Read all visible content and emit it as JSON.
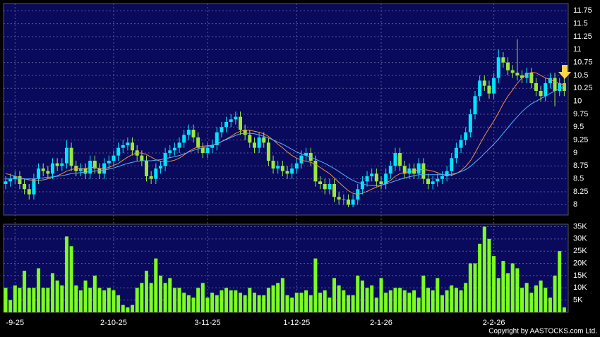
{
  "chart_data": [
    {
      "type": "candlestick",
      "categories": [
        null,
        null,
        "-9-25",
        null,
        null,
        null,
        null,
        null,
        null,
        null,
        null,
        null,
        null,
        null,
        null,
        null,
        null,
        null,
        null,
        null,
        null,
        null,
        null,
        "2-10-25",
        null,
        null,
        null,
        null,
        null,
        null,
        null,
        null,
        null,
        null,
        null,
        null,
        null,
        null,
        null,
        null,
        null,
        null,
        null,
        "3-11-25",
        null,
        null,
        null,
        null,
        null,
        null,
        null,
        null,
        null,
        null,
        null,
        null,
        null,
        null,
        null,
        null,
        null,
        null,
        "1-12-25",
        null,
        null,
        null,
        null,
        null,
        null,
        null,
        null,
        null,
        null,
        null,
        null,
        null,
        null,
        null,
        null,
        null,
        "2-1-26",
        null,
        null,
        null,
        null,
        null,
        null,
        null,
        null,
        null,
        null,
        null,
        null,
        null,
        null,
        null,
        null,
        null,
        null,
        null,
        null,
        null,
        null,
        null,
        "2-2-26",
        null,
        null,
        null,
        null,
        null,
        null,
        null,
        null,
        null,
        null,
        null,
        null,
        null,
        null,
        null
      ],
      "open": [
        8.4,
        8.45,
        8.5,
        8.55,
        8.4,
        8.3,
        8.2,
        8.5,
        8.7,
        8.65,
        8.6,
        8.8,
        8.75,
        8.8,
        9.1,
        8.75,
        8.65,
        8.7,
        8.6,
        8.85,
        8.7,
        8.6,
        8.8,
        8.85,
        8.95,
        9.1,
        9.15,
        9.2,
        9.05,
        8.95,
        8.85,
        8.55,
        8.5,
        8.7,
        8.75,
        9.0,
        9.05,
        9.1,
        9.2,
        9.35,
        9.45,
        9.3,
        9.1,
        9.0,
        9.1,
        9.15,
        9.4,
        9.5,
        9.6,
        9.65,
        9.7,
        9.45,
        9.35,
        9.2,
        9.1,
        9.3,
        9.2,
        8.85,
        8.7,
        8.75,
        8.65,
        8.6,
        8.7,
        8.8,
        8.95,
        9.0,
        8.85,
        8.45,
        8.4,
        8.3,
        8.4,
        8.15,
        8.1,
        8.1,
        8.0,
        8.1,
        8.3,
        8.45,
        8.55,
        8.6,
        8.45,
        8.4,
        8.6,
        8.75,
        9.0,
        8.75,
        8.6,
        8.7,
        8.6,
        8.8,
        8.5,
        8.4,
        8.45,
        8.5,
        8.55,
        8.65,
        8.9,
        9.1,
        9.25,
        9.4,
        9.75,
        10.1,
        10.4,
        10.3,
        10.15,
        10.45,
        10.85,
        10.75,
        10.6,
        10.55,
        10.5,
        10.45,
        10.55,
        10.35,
        10.2,
        10.1,
        10.35,
        10.45,
        10.2,
        10.35
      ],
      "high": [
        8.55,
        8.6,
        8.65,
        8.65,
        8.5,
        8.4,
        8.6,
        8.8,
        8.8,
        8.75,
        8.9,
        8.9,
        8.9,
        9.25,
        9.2,
        8.85,
        8.8,
        8.8,
        8.95,
        8.95,
        8.8,
        8.9,
        8.95,
        9.05,
        9.2,
        9.25,
        9.3,
        9.3,
        9.15,
        9.05,
        8.95,
        8.65,
        8.8,
        8.85,
        9.1,
        9.15,
        9.2,
        9.3,
        9.45,
        9.55,
        9.55,
        9.4,
        9.2,
        9.2,
        9.25,
        9.5,
        9.6,
        9.7,
        9.75,
        9.8,
        9.8,
        9.55,
        9.45,
        9.3,
        9.4,
        9.4,
        9.3,
        8.95,
        8.85,
        8.85,
        8.75,
        8.8,
        8.9,
        9.05,
        9.1,
        9.1,
        8.95,
        8.55,
        8.5,
        8.5,
        8.5,
        8.25,
        8.2,
        8.2,
        8.2,
        8.4,
        8.55,
        8.65,
        8.7,
        8.7,
        8.55,
        8.7,
        8.85,
        9.1,
        9.1,
        8.85,
        8.8,
        8.8,
        8.9,
        8.9,
        8.6,
        8.55,
        8.6,
        8.65,
        8.75,
        9.0,
        9.2,
        9.35,
        9.5,
        9.85,
        10.2,
        10.5,
        10.5,
        10.4,
        10.55,
        11.0,
        10.95,
        10.85,
        10.7,
        11.2,
        10.6,
        10.65,
        10.65,
        10.45,
        10.3,
        10.45,
        10.55,
        10.55,
        10.45,
        10.45
      ],
      "low": [
        8.3,
        8.35,
        8.4,
        8.3,
        8.2,
        8.1,
        8.1,
        8.4,
        8.55,
        8.5,
        8.5,
        8.65,
        8.65,
        8.7,
        8.65,
        8.55,
        8.55,
        8.5,
        8.5,
        8.6,
        8.5,
        8.5,
        8.7,
        8.75,
        8.85,
        9.0,
        9.05,
        8.95,
        8.85,
        8.75,
        8.45,
        8.4,
        8.4,
        8.6,
        8.65,
        8.9,
        8.95,
        9.0,
        9.1,
        9.25,
        9.2,
        9.0,
        8.9,
        8.9,
        9.0,
        9.05,
        9.3,
        9.4,
        9.5,
        9.55,
        9.35,
        9.25,
        9.1,
        9.0,
        9.0,
        9.1,
        8.75,
        8.6,
        8.6,
        8.55,
        8.5,
        8.5,
        8.6,
        8.7,
        8.85,
        8.75,
        8.35,
        8.3,
        8.2,
        8.2,
        8.05,
        8.0,
        8.0,
        7.95,
        7.95,
        8.0,
        8.2,
        8.35,
        8.45,
        8.35,
        8.3,
        8.3,
        8.5,
        8.65,
        8.65,
        8.5,
        8.5,
        8.5,
        8.5,
        8.4,
        8.3,
        8.3,
        8.35,
        8.4,
        8.45,
        8.55,
        8.8,
        9.0,
        9.15,
        9.3,
        9.65,
        10.0,
        10.2,
        10.05,
        10.05,
        10.35,
        10.65,
        10.5,
        10.45,
        10.4,
        10.35,
        10.35,
        10.25,
        10.1,
        10.0,
        10.0,
        10.25,
        9.9,
        10.1,
        10.1
      ],
      "close": [
        8.45,
        8.5,
        8.55,
        8.4,
        8.3,
        8.2,
        8.5,
        8.7,
        8.65,
        8.6,
        8.8,
        8.75,
        8.8,
        9.1,
        8.75,
        8.65,
        8.7,
        8.6,
        8.85,
        8.7,
        8.6,
        8.8,
        8.85,
        8.95,
        9.1,
        9.15,
        9.2,
        9.05,
        8.95,
        8.85,
        8.55,
        8.5,
        8.7,
        8.75,
        9.0,
        9.05,
        9.1,
        9.2,
        9.35,
        9.45,
        9.3,
        9.1,
        9.0,
        9.1,
        9.15,
        9.4,
        9.5,
        9.6,
        9.65,
        9.7,
        9.45,
        9.35,
        9.2,
        9.1,
        9.3,
        9.2,
        8.85,
        8.7,
        8.75,
        8.65,
        8.6,
        8.7,
        8.8,
        8.95,
        9.0,
        8.85,
        8.45,
        8.4,
        8.3,
        8.4,
        8.15,
        8.1,
        8.1,
        8.0,
        8.1,
        8.3,
        8.45,
        8.55,
        8.6,
        8.45,
        8.4,
        8.6,
        8.75,
        9.0,
        8.75,
        8.6,
        8.7,
        8.6,
        8.8,
        8.5,
        8.4,
        8.45,
        8.5,
        8.55,
        8.65,
        8.9,
        9.1,
        9.25,
        9.4,
        9.75,
        10.1,
        10.4,
        10.3,
        10.15,
        10.45,
        10.85,
        10.75,
        10.6,
        10.55,
        10.5,
        10.45,
        10.55,
        10.35,
        10.2,
        10.1,
        10.35,
        10.45,
        10.2,
        10.35,
        10.2
      ],
      "up_color": "#00e5ff",
      "down_color": "#9be83a",
      "series": [
        {
          "color": "#f0903a",
          "values": [
            8.6,
            8.58,
            8.55,
            8.52,
            8.5,
            8.48,
            8.47,
            8.47,
            8.48,
            8.5,
            8.53,
            8.56,
            8.6,
            8.65,
            8.68,
            8.7,
            8.7,
            8.7,
            8.72,
            8.72,
            8.7,
            8.7,
            8.72,
            8.76,
            8.8,
            8.86,
            8.92,
            8.97,
            9.0,
            9.0,
            8.97,
            8.92,
            8.87,
            8.84,
            8.83,
            8.84,
            8.86,
            8.9,
            8.96,
            9.03,
            9.08,
            9.12,
            9.13,
            9.14,
            9.15,
            9.17,
            9.22,
            9.27,
            9.32,
            9.38,
            9.42,
            9.44,
            9.44,
            9.42,
            9.4,
            9.37,
            9.32,
            9.25,
            9.17,
            9.1,
            9.02,
            8.95,
            8.9,
            8.86,
            8.84,
            8.82,
            8.78,
            8.72,
            8.66,
            8.6,
            8.52,
            8.43,
            8.35,
            8.27,
            8.22,
            8.2,
            8.22,
            8.26,
            8.3,
            8.34,
            8.37,
            8.42,
            8.47,
            8.55,
            8.6,
            8.62,
            8.64,
            8.65,
            8.68,
            8.68,
            8.67,
            8.65,
            8.62,
            8.58,
            8.56,
            8.57,
            8.6,
            8.66,
            8.74,
            8.85,
            9.0,
            9.17,
            9.33,
            9.48,
            9.62,
            9.78,
            9.95,
            10.1,
            10.22,
            10.35,
            10.45,
            10.52,
            10.56,
            10.55,
            10.5,
            10.45,
            10.42,
            10.38,
            10.34,
            10.32
          ]
        },
        {
          "color": "#4fb0ff",
          "values": [
            8.5,
            8.5,
            8.5,
            8.5,
            8.5,
            8.5,
            8.5,
            8.51,
            8.52,
            8.53,
            8.54,
            8.55,
            8.56,
            8.58,
            8.6,
            8.61,
            8.62,
            8.63,
            8.64,
            8.65,
            8.66,
            8.67,
            8.69,
            8.71,
            8.74,
            8.77,
            8.8,
            8.82,
            8.84,
            8.85,
            8.85,
            8.85,
            8.86,
            8.87,
            8.89,
            8.91,
            8.93,
            8.95,
            8.98,
            9.02,
            9.05,
            9.08,
            9.1,
            9.12,
            9.15,
            9.18,
            9.22,
            9.26,
            9.3,
            9.34,
            9.37,
            9.38,
            9.38,
            9.37,
            9.35,
            9.32,
            9.29,
            9.25,
            9.21,
            9.17,
            9.12,
            9.07,
            9.02,
            8.98,
            8.95,
            8.92,
            8.88,
            8.84,
            8.8,
            8.75,
            8.7,
            8.64,
            8.58,
            8.52,
            8.47,
            8.43,
            8.4,
            8.38,
            8.37,
            8.37,
            8.38,
            8.4,
            8.43,
            8.46,
            8.49,
            8.52,
            8.54,
            8.56,
            8.58,
            8.58,
            8.58,
            8.58,
            8.58,
            8.58,
            8.58,
            8.59,
            8.61,
            8.64,
            8.68,
            8.74,
            8.82,
            8.9,
            8.99,
            9.08,
            9.17,
            9.27,
            9.38,
            9.49,
            9.6,
            9.7,
            9.8,
            9.88,
            9.95,
            10.0,
            10.05,
            10.1,
            10.15,
            10.2,
            10.25,
            10.3
          ]
        }
      ],
      "ylim": [
        7.8,
        11.89
      ],
      "yticks": [
        8,
        8.25,
        8.5,
        8.75,
        9,
        9.25,
        9.5,
        9.75,
        10,
        10.25,
        10.5,
        10.75,
        11,
        11.25,
        11.5,
        11.75
      ],
      "grid": true
    },
    {
      "type": "bar",
      "color": "#7cff1e",
      "values": [
        10000,
        5000,
        11000,
        10000,
        17000,
        10000,
        10000,
        18000,
        10000,
        10000,
        16000,
        13000,
        11000,
        31000,
        27000,
        11000,
        9000,
        13000,
        10000,
        15000,
        10000,
        9000,
        10000,
        9000,
        7000,
        3000,
        2000,
        3000,
        10000,
        12000,
        17000,
        12000,
        22000,
        15000,
        12000,
        14000,
        10000,
        10000,
        8000,
        7000,
        6000,
        10000,
        12000,
        6000,
        8000,
        7000,
        9000,
        10000,
        9000,
        9000,
        8000,
        7000,
        10000,
        8000,
        7000,
        7000,
        10000,
        11000,
        12000,
        14000,
        7000,
        6000,
        8000,
        8000,
        9000,
        7000,
        22000,
        8000,
        9000,
        6000,
        14000,
        11000,
        9000,
        7000,
        7000,
        15000,
        13000,
        10000,
        11000,
        6000,
        14000,
        8000,
        9000,
        10000,
        10000,
        9000,
        8000,
        9000,
        6000,
        15000,
        10000,
        9000,
        14000,
        7000,
        9000,
        11000,
        10000,
        9000,
        12000,
        20000,
        20000,
        28000,
        35000,
        30000,
        23000,
        14000,
        21000,
        16000,
        20000,
        18000,
        10000,
        12000,
        8000,
        11000,
        13000,
        10000,
        6000,
        15000,
        25000,
        2000
      ],
      "ylim": [
        0,
        36000
      ],
      "yticks": [
        {
          "value": 5000,
          "label": "5K"
        },
        {
          "value": 10000,
          "label": "10K"
        },
        {
          "value": 15000,
          "label": "15K"
        },
        {
          "value": 20000,
          "label": "20K"
        },
        {
          "value": 25000,
          "label": "25K"
        },
        {
          "value": 30000,
          "label": "30K"
        },
        {
          "value": 35000,
          "label": "35K"
        }
      ],
      "grid": true
    }
  ],
  "footer": {
    "copyright": "Copyright by AASTOCKS.com Ltd."
  }
}
